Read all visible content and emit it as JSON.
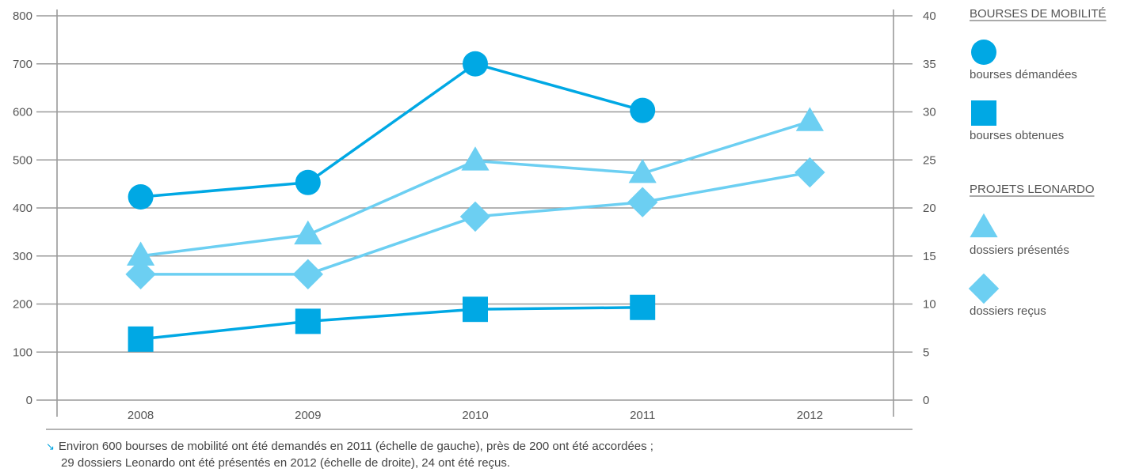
{
  "chart_data": {
    "type": "line",
    "categories": [
      "2008",
      "2009",
      "2010",
      "2011",
      "2012"
    ],
    "left_axis": {
      "min": 0,
      "max": 800,
      "step": 100
    },
    "right_axis": {
      "min": 0,
      "max": 40,
      "step": 5
    },
    "grid": true,
    "legend": {
      "placement": "right",
      "groups": [
        {
          "title": "BOURSES DE MOBILITÉ",
          "items": [
            {
              "label": "bourses démandées",
              "marker": "circle",
              "color": "#00a8e4"
            },
            {
              "label": "bourses obtenues",
              "marker": "square",
              "color": "#00a8e4"
            }
          ]
        },
        {
          "title": "PROJETS LEONARDO",
          "items": [
            {
              "label": "dossiers présentés",
              "marker": "triangle",
              "color": "#6ccff2"
            },
            {
              "label": "dossiers reçus",
              "marker": "diamond",
              "color": "#6ccff2"
            }
          ]
        }
      ]
    },
    "series": [
      {
        "name": "bourses démandées",
        "axis": "left",
        "marker": "circle",
        "color": "#00a8e4",
        "values": [
          423,
          453,
          700,
          603,
          null
        ]
      },
      {
        "name": "bourses obtenues",
        "axis": "left",
        "marker": "square",
        "color": "#00a8e4",
        "values": [
          127,
          164,
          189,
          193,
          null
        ]
      },
      {
        "name": "dossiers présentés",
        "axis": "right",
        "marker": "triangle",
        "color": "#6ccff2",
        "values": [
          15,
          17.2,
          24.9,
          23.6,
          29
        ]
      },
      {
        "name": "dossiers reçus",
        "axis": "right",
        "marker": "diamond",
        "color": "#6ccff2",
        "values": [
          13.1,
          13.1,
          19.1,
          20.6,
          23.7
        ]
      }
    ]
  },
  "caption": {
    "arrow_icon": "↘",
    "line1": "Environ 600 bourses de mobilité ont été demandés en 2011 (échelle de gauche), près de 200 ont été accordées ;",
    "line2": "29 dossiers Leonardo ont été présentés en 2012 (échelle de droite), 24 ont été reçus."
  }
}
